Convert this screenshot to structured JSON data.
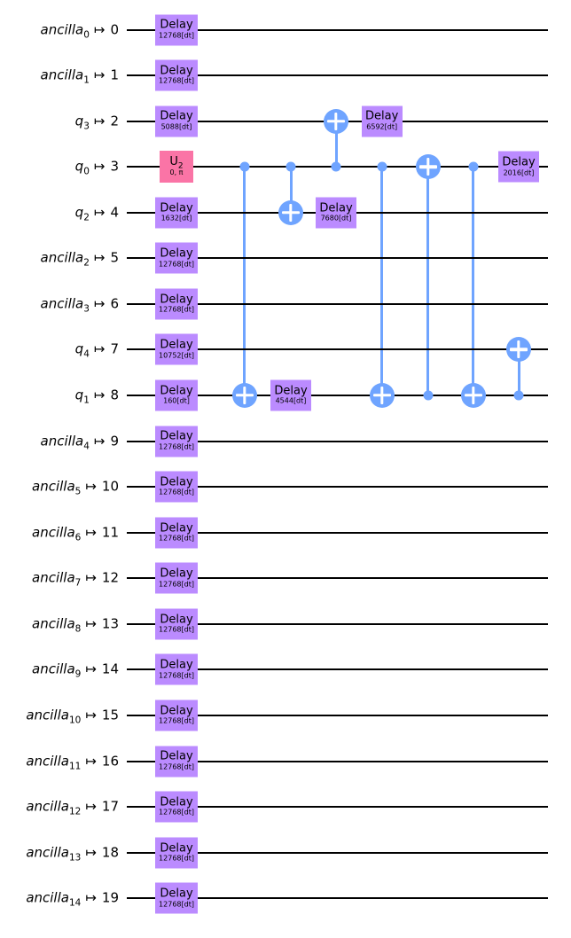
{
  "map_symbol": "↦",
  "colors": {
    "background": "#ffffff",
    "wire": "#000000",
    "delay_fill": "#BB8BFF",
    "u2_fill": "#FA74A6",
    "cx_blue": "#6FA4FF",
    "gate_text": "#000000"
  },
  "wires": [
    {
      "name": "ancilla",
      "sub": "0",
      "phys": "0"
    },
    {
      "name": "ancilla",
      "sub": "1",
      "phys": "1"
    },
    {
      "name": "q",
      "sub": "3",
      "phys": "2"
    },
    {
      "name": "q",
      "sub": "0",
      "phys": "3"
    },
    {
      "name": "q",
      "sub": "2",
      "phys": "4"
    },
    {
      "name": "ancilla",
      "sub": "2",
      "phys": "5"
    },
    {
      "name": "ancilla",
      "sub": "3",
      "phys": "6"
    },
    {
      "name": "q",
      "sub": "4",
      "phys": "7"
    },
    {
      "name": "q",
      "sub": "1",
      "phys": "8"
    },
    {
      "name": "ancilla",
      "sub": "4",
      "phys": "9"
    },
    {
      "name": "ancilla",
      "sub": "5",
      "phys": "10"
    },
    {
      "name": "ancilla",
      "sub": "6",
      "phys": "11"
    },
    {
      "name": "ancilla",
      "sub": "7",
      "phys": "12"
    },
    {
      "name": "ancilla",
      "sub": "8",
      "phys": "13"
    },
    {
      "name": "ancilla",
      "sub": "9",
      "phys": "14"
    },
    {
      "name": "ancilla",
      "sub": "10",
      "phys": "15"
    },
    {
      "name": "ancilla",
      "sub": "11",
      "phys": "16"
    },
    {
      "name": "ancilla",
      "sub": "12",
      "phys": "17"
    },
    {
      "name": "ancilla",
      "sub": "13",
      "phys": "18"
    },
    {
      "name": "ancilla",
      "sub": "14",
      "phys": "19"
    }
  ],
  "box_gates": [
    {
      "kind": "delay",
      "row": 0,
      "col": 0,
      "label": "Delay",
      "duration": "12768[dt]"
    },
    {
      "kind": "delay",
      "row": 1,
      "col": 0,
      "label": "Delay",
      "duration": "12768[dt]"
    },
    {
      "kind": "delay",
      "row": 2,
      "col": 0,
      "label": "Delay",
      "duration": "5088[dt]"
    },
    {
      "kind": "u2",
      "row": 3,
      "col": 0,
      "label": "U",
      "sub": "2",
      "params": "0, π"
    },
    {
      "kind": "delay",
      "row": 4,
      "col": 0,
      "label": "Delay",
      "duration": "1632[dt]"
    },
    {
      "kind": "delay",
      "row": 5,
      "col": 0,
      "label": "Delay",
      "duration": "12768[dt]"
    },
    {
      "kind": "delay",
      "row": 6,
      "col": 0,
      "label": "Delay",
      "duration": "12768[dt]"
    },
    {
      "kind": "delay",
      "row": 7,
      "col": 0,
      "label": "Delay",
      "duration": "10752[dt]"
    },
    {
      "kind": "delay",
      "row": 8,
      "col": 0,
      "label": "Delay",
      "duration": "160[dt]"
    },
    {
      "kind": "delay",
      "row": 9,
      "col": 0,
      "label": "Delay",
      "duration": "12768[dt]"
    },
    {
      "kind": "delay",
      "row": 10,
      "col": 0,
      "label": "Delay",
      "duration": "12768[dt]"
    },
    {
      "kind": "delay",
      "row": 11,
      "col": 0,
      "label": "Delay",
      "duration": "12768[dt]"
    },
    {
      "kind": "delay",
      "row": 12,
      "col": 0,
      "label": "Delay",
      "duration": "12768[dt]"
    },
    {
      "kind": "delay",
      "row": 13,
      "col": 0,
      "label": "Delay",
      "duration": "12768[dt]"
    },
    {
      "kind": "delay",
      "row": 14,
      "col": 0,
      "label": "Delay",
      "duration": "12768[dt]"
    },
    {
      "kind": "delay",
      "row": 15,
      "col": 0,
      "label": "Delay",
      "duration": "12768[dt]"
    },
    {
      "kind": "delay",
      "row": 16,
      "col": 0,
      "label": "Delay",
      "duration": "12768[dt]"
    },
    {
      "kind": "delay",
      "row": 17,
      "col": 0,
      "label": "Delay",
      "duration": "12768[dt]"
    },
    {
      "kind": "delay",
      "row": 18,
      "col": 0,
      "label": "Delay",
      "duration": "12768[dt]"
    },
    {
      "kind": "delay",
      "row": 19,
      "col": 0,
      "label": "Delay",
      "duration": "12768[dt]"
    },
    {
      "kind": "delay",
      "row": 8,
      "col": 2,
      "label": "Delay",
      "duration": "4544[dt]"
    },
    {
      "kind": "delay",
      "row": 4,
      "col": 3,
      "label": "Delay",
      "duration": "7680[dt]"
    },
    {
      "kind": "delay",
      "row": 2,
      "col": 4,
      "label": "Delay",
      "duration": "6592[dt]"
    },
    {
      "kind": "delay",
      "row": 3,
      "col": 7,
      "label": "Delay",
      "duration": "2016[dt]"
    }
  ],
  "cx_gates": [
    {
      "control": 3,
      "target": 8,
      "col": 1
    },
    {
      "control": 3,
      "target": 4,
      "col": 2
    },
    {
      "control": 3,
      "target": 2,
      "col": 3
    },
    {
      "control": 3,
      "target": 8,
      "col": 4
    },
    {
      "control": 8,
      "target": 3,
      "col": 5
    },
    {
      "control": 3,
      "target": 8,
      "col": 6
    },
    {
      "control": 8,
      "target": 7,
      "col": 7
    }
  ]
}
